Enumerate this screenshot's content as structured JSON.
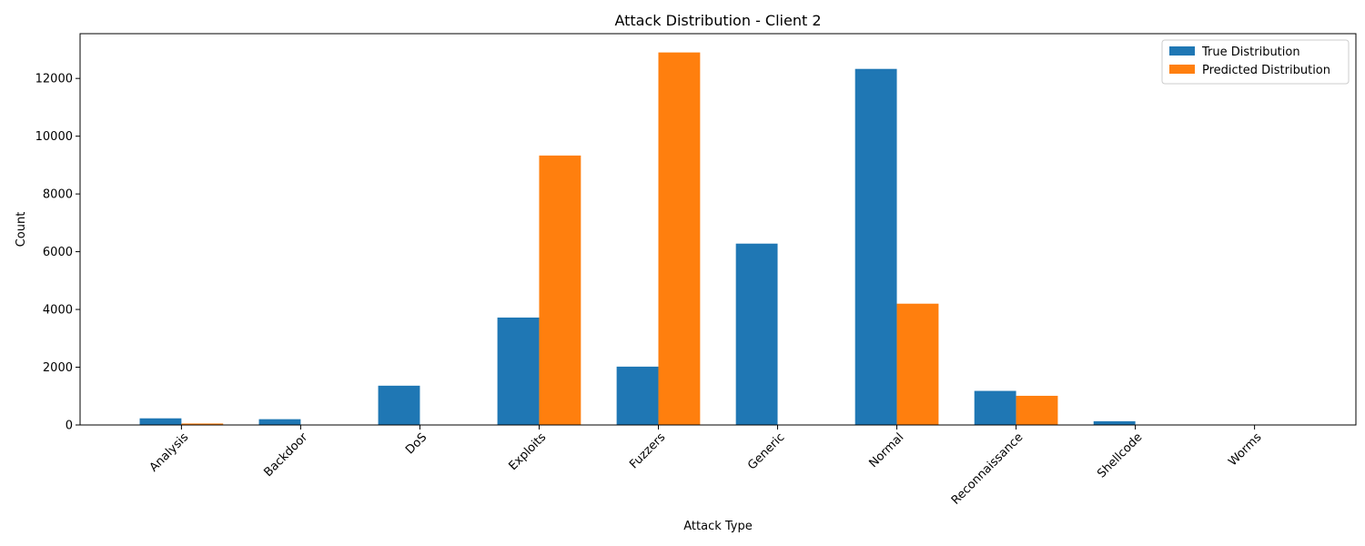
{
  "chart_data": {
    "type": "bar",
    "title": "Attack Distribution - Client 2",
    "xlabel": "Attack Type",
    "ylabel": "Count",
    "categories": [
      "Analysis",
      "Backdoor",
      "DoS",
      "Exploits",
      "Fuzzers",
      "Generic",
      "Normal",
      "Reconnaissance",
      "Shellcode",
      "Worms"
    ],
    "series": [
      {
        "name": "True Distribution",
        "color": "#1f77b4",
        "values": [
          230,
          200,
          1360,
          3720,
          2020,
          6280,
          12330,
          1180,
          130,
          10
        ]
      },
      {
        "name": "Predicted Distribution",
        "color": "#ff7f0e",
        "values": [
          50,
          0,
          0,
          9330,
          12900,
          0,
          4200,
          1010,
          0,
          0
        ]
      }
    ],
    "ylim": [
      0,
      13550
    ],
    "yticks": [
      0,
      2000,
      4000,
      6000,
      8000,
      10000,
      12000
    ],
    "legend_position": "top-right",
    "grid": false
  }
}
